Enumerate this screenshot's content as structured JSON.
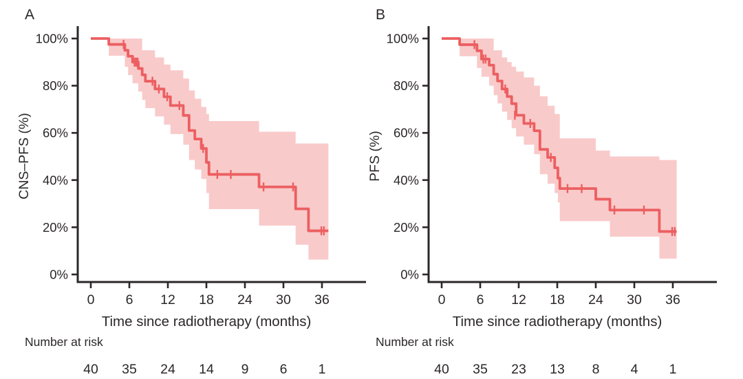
{
  "figure": {
    "description": "Two-panel Kaplan-Meier survival figure with 95% confidence bands",
    "background": "#ffffff"
  },
  "colors": {
    "curve": "#ec5f61",
    "band": "#f9caca",
    "axis": "#2b2728",
    "text": "#2b2728"
  },
  "chart_data": [
    {
      "type": "line",
      "subtype": "kaplan-meier-step",
      "panel_label": "A",
      "ylabel": "CNS–PFS (%)",
      "xlabel": "Time since radiotherapy (months)",
      "xticks": [
        0,
        6,
        12,
        18,
        24,
        30,
        36
      ],
      "yticks": [
        {
          "value": 100,
          "label": "100%"
        },
        {
          "value": 80,
          "label": "80%"
        },
        {
          "value": 60,
          "label": "60%"
        },
        {
          "value": 40,
          "label": "40%"
        },
        {
          "value": 20,
          "label": "20%"
        },
        {
          "value": 0,
          "label": "0%"
        }
      ],
      "xlim": [
        0,
        42
      ],
      "ylim": [
        0,
        100
      ],
      "grid": false,
      "legend": "none",
      "risk_header": "Number at risk",
      "number_at_risk": {
        "times": [
          0,
          6,
          12,
          18,
          24,
          30,
          36
        ],
        "counts": [
          40,
          35,
          24,
          14,
          9,
          6,
          1
        ]
      },
      "end_time": 37.0,
      "survival_steps": [
        [
          0,
          100
        ],
        [
          2.8,
          97.5
        ],
        [
          5.3,
          95
        ],
        [
          5.8,
          92.5
        ],
        [
          6.5,
          90
        ],
        [
          7.4,
          87.3
        ],
        [
          8.0,
          84.6
        ],
        [
          8.5,
          81.9
        ],
        [
          10.0,
          78.6
        ],
        [
          11.4,
          75.3
        ],
        [
          12.4,
          71.6
        ],
        [
          14.4,
          67.4
        ],
        [
          15.3,
          61.0
        ],
        [
          16.2,
          57.4
        ],
        [
          17.2,
          53.4
        ],
        [
          18.0,
          47.5
        ],
        [
          18.4,
          42.4
        ],
        [
          26.2,
          37.1
        ],
        [
          31.9,
          27.8
        ],
        [
          33.9,
          18.5
        ]
      ],
      "censor_marks": [
        [
          5.1,
          97.5
        ],
        [
          6.8,
          90
        ],
        [
          7.05,
          90
        ],
        [
          7.3,
          90
        ],
        [
          9.6,
          81.9
        ],
        [
          10.6,
          78.6
        ],
        [
          11.9,
          75.3
        ],
        [
          13.8,
          71.6
        ],
        [
          17.5,
          53.4
        ],
        [
          19.7,
          42.4
        ],
        [
          21.8,
          42.4
        ],
        [
          26.9,
          37.1
        ],
        [
          31.5,
          37.1
        ],
        [
          35.9,
          18.5
        ],
        [
          36.3,
          18.5
        ]
      ],
      "ci_upper": [
        [
          2.8,
          100
        ],
        [
          8.0,
          95
        ],
        [
          10.0,
          92
        ],
        [
          11.4,
          89
        ],
        [
          12.4,
          86.5
        ],
        [
          14.4,
          83
        ],
        [
          15.3,
          78
        ],
        [
          16.2,
          74.5
        ],
        [
          17.2,
          71
        ],
        [
          18.0,
          68
        ],
        [
          18.4,
          65
        ],
        [
          26.2,
          60.5
        ],
        [
          31.9,
          55.5
        ]
      ],
      "ci_lower": [
        [
          2.8,
          92.7
        ],
        [
          5.3,
          88
        ],
        [
          5.8,
          84.5
        ],
        [
          6.5,
          81
        ],
        [
          7.4,
          77.5
        ],
        [
          8.0,
          74
        ],
        [
          8.5,
          70.5
        ],
        [
          10.0,
          67
        ],
        [
          11.4,
          63.5
        ],
        [
          12.4,
          59.5
        ],
        [
          14.4,
          55
        ],
        [
          15.3,
          48.5
        ],
        [
          16.2,
          44.5
        ],
        [
          17.2,
          40.5
        ],
        [
          18.0,
          34.5
        ],
        [
          18.4,
          27.7
        ],
        [
          26.2,
          20.7
        ],
        [
          31.9,
          12.6
        ],
        [
          33.9,
          6.3
        ]
      ]
    },
    {
      "type": "line",
      "subtype": "kaplan-meier-step",
      "panel_label": "B",
      "ylabel": "PFS (%)",
      "xlabel": "Time since radiotherapy (months)",
      "xticks": [
        0,
        6,
        12,
        18,
        24,
        30,
        36
      ],
      "yticks": [
        {
          "value": 100,
          "label": "100%"
        },
        {
          "value": 80,
          "label": "80%"
        },
        {
          "value": 60,
          "label": "60%"
        },
        {
          "value": 40,
          "label": "40%"
        },
        {
          "value": 20,
          "label": "20%"
        },
        {
          "value": 0,
          "label": "0%"
        }
      ],
      "xlim": [
        0,
        42
      ],
      "ylim": [
        0,
        100
      ],
      "grid": false,
      "legend": "none",
      "risk_header": "Number at risk",
      "number_at_risk": {
        "times": [
          0,
          6,
          12,
          18,
          24,
          30,
          36
        ],
        "counts": [
          40,
          35,
          23,
          13,
          8,
          4,
          1
        ]
      },
      "end_time": 36.6,
      "survival_steps": [
        [
          0,
          100
        ],
        [
          2.8,
          97.4
        ],
        [
          5.5,
          94.8
        ],
        [
          6.2,
          91.3
        ],
        [
          7.4,
          88.7
        ],
        [
          8.1,
          84.9
        ],
        [
          8.7,
          82.0
        ],
        [
          9.4,
          78.6
        ],
        [
          10.2,
          75.4
        ],
        [
          10.9,
          72.4
        ],
        [
          11.6,
          67.5
        ],
        [
          12.8,
          64.0
        ],
        [
          14.4,
          60.9
        ],
        [
          15.3,
          53.0
        ],
        [
          16.5,
          49.6
        ],
        [
          17.6,
          45.2
        ],
        [
          18.1,
          40.8
        ],
        [
          18.4,
          36.4
        ],
        [
          24.0,
          31.9
        ],
        [
          26.2,
          27.3
        ],
        [
          33.9,
          18.2
        ]
      ],
      "censor_marks": [
        [
          5.1,
          97.4
        ],
        [
          6.5,
          91.3
        ],
        [
          6.85,
          91.3
        ],
        [
          9.9,
          78.6
        ],
        [
          11.4,
          67.5
        ],
        [
          13.8,
          64.0
        ],
        [
          17.0,
          49.6
        ],
        [
          19.6,
          36.4
        ],
        [
          21.8,
          36.4
        ],
        [
          26.9,
          27.3
        ],
        [
          31.5,
          27.3
        ],
        [
          35.9,
          18.2
        ],
        [
          36.3,
          18.2
        ]
      ],
      "ci_upper": [
        [
          2.8,
          100
        ],
        [
          8.1,
          95
        ],
        [
          9.4,
          92
        ],
        [
          10.2,
          90
        ],
        [
          10.9,
          88
        ],
        [
          11.6,
          86
        ],
        [
          12.8,
          83.5
        ],
        [
          14.4,
          80
        ],
        [
          15.3,
          75.5
        ],
        [
          16.5,
          71.5
        ],
        [
          17.6,
          68
        ],
        [
          18.4,
          57.7
        ],
        [
          24.0,
          52.5
        ],
        [
          26.2,
          50
        ],
        [
          33.9,
          48.5
        ]
      ],
      "ci_lower": [
        [
          2.8,
          92.5
        ],
        [
          5.5,
          87.5
        ],
        [
          6.2,
          83.8
        ],
        [
          7.4,
          80
        ],
        [
          8.1,
          76
        ],
        [
          8.7,
          72.5
        ],
        [
          9.4,
          69
        ],
        [
          10.2,
          65.5
        ],
        [
          10.9,
          62
        ],
        [
          11.6,
          58.5
        ],
        [
          12.8,
          55
        ],
        [
          14.4,
          51
        ],
        [
          15.3,
          42.5
        ],
        [
          16.5,
          38.5
        ],
        [
          17.6,
          34.5
        ],
        [
          18.1,
          30.5
        ],
        [
          18.4,
          22.6
        ],
        [
          26.2,
          16
        ],
        [
          33.9,
          6.7
        ]
      ]
    }
  ]
}
